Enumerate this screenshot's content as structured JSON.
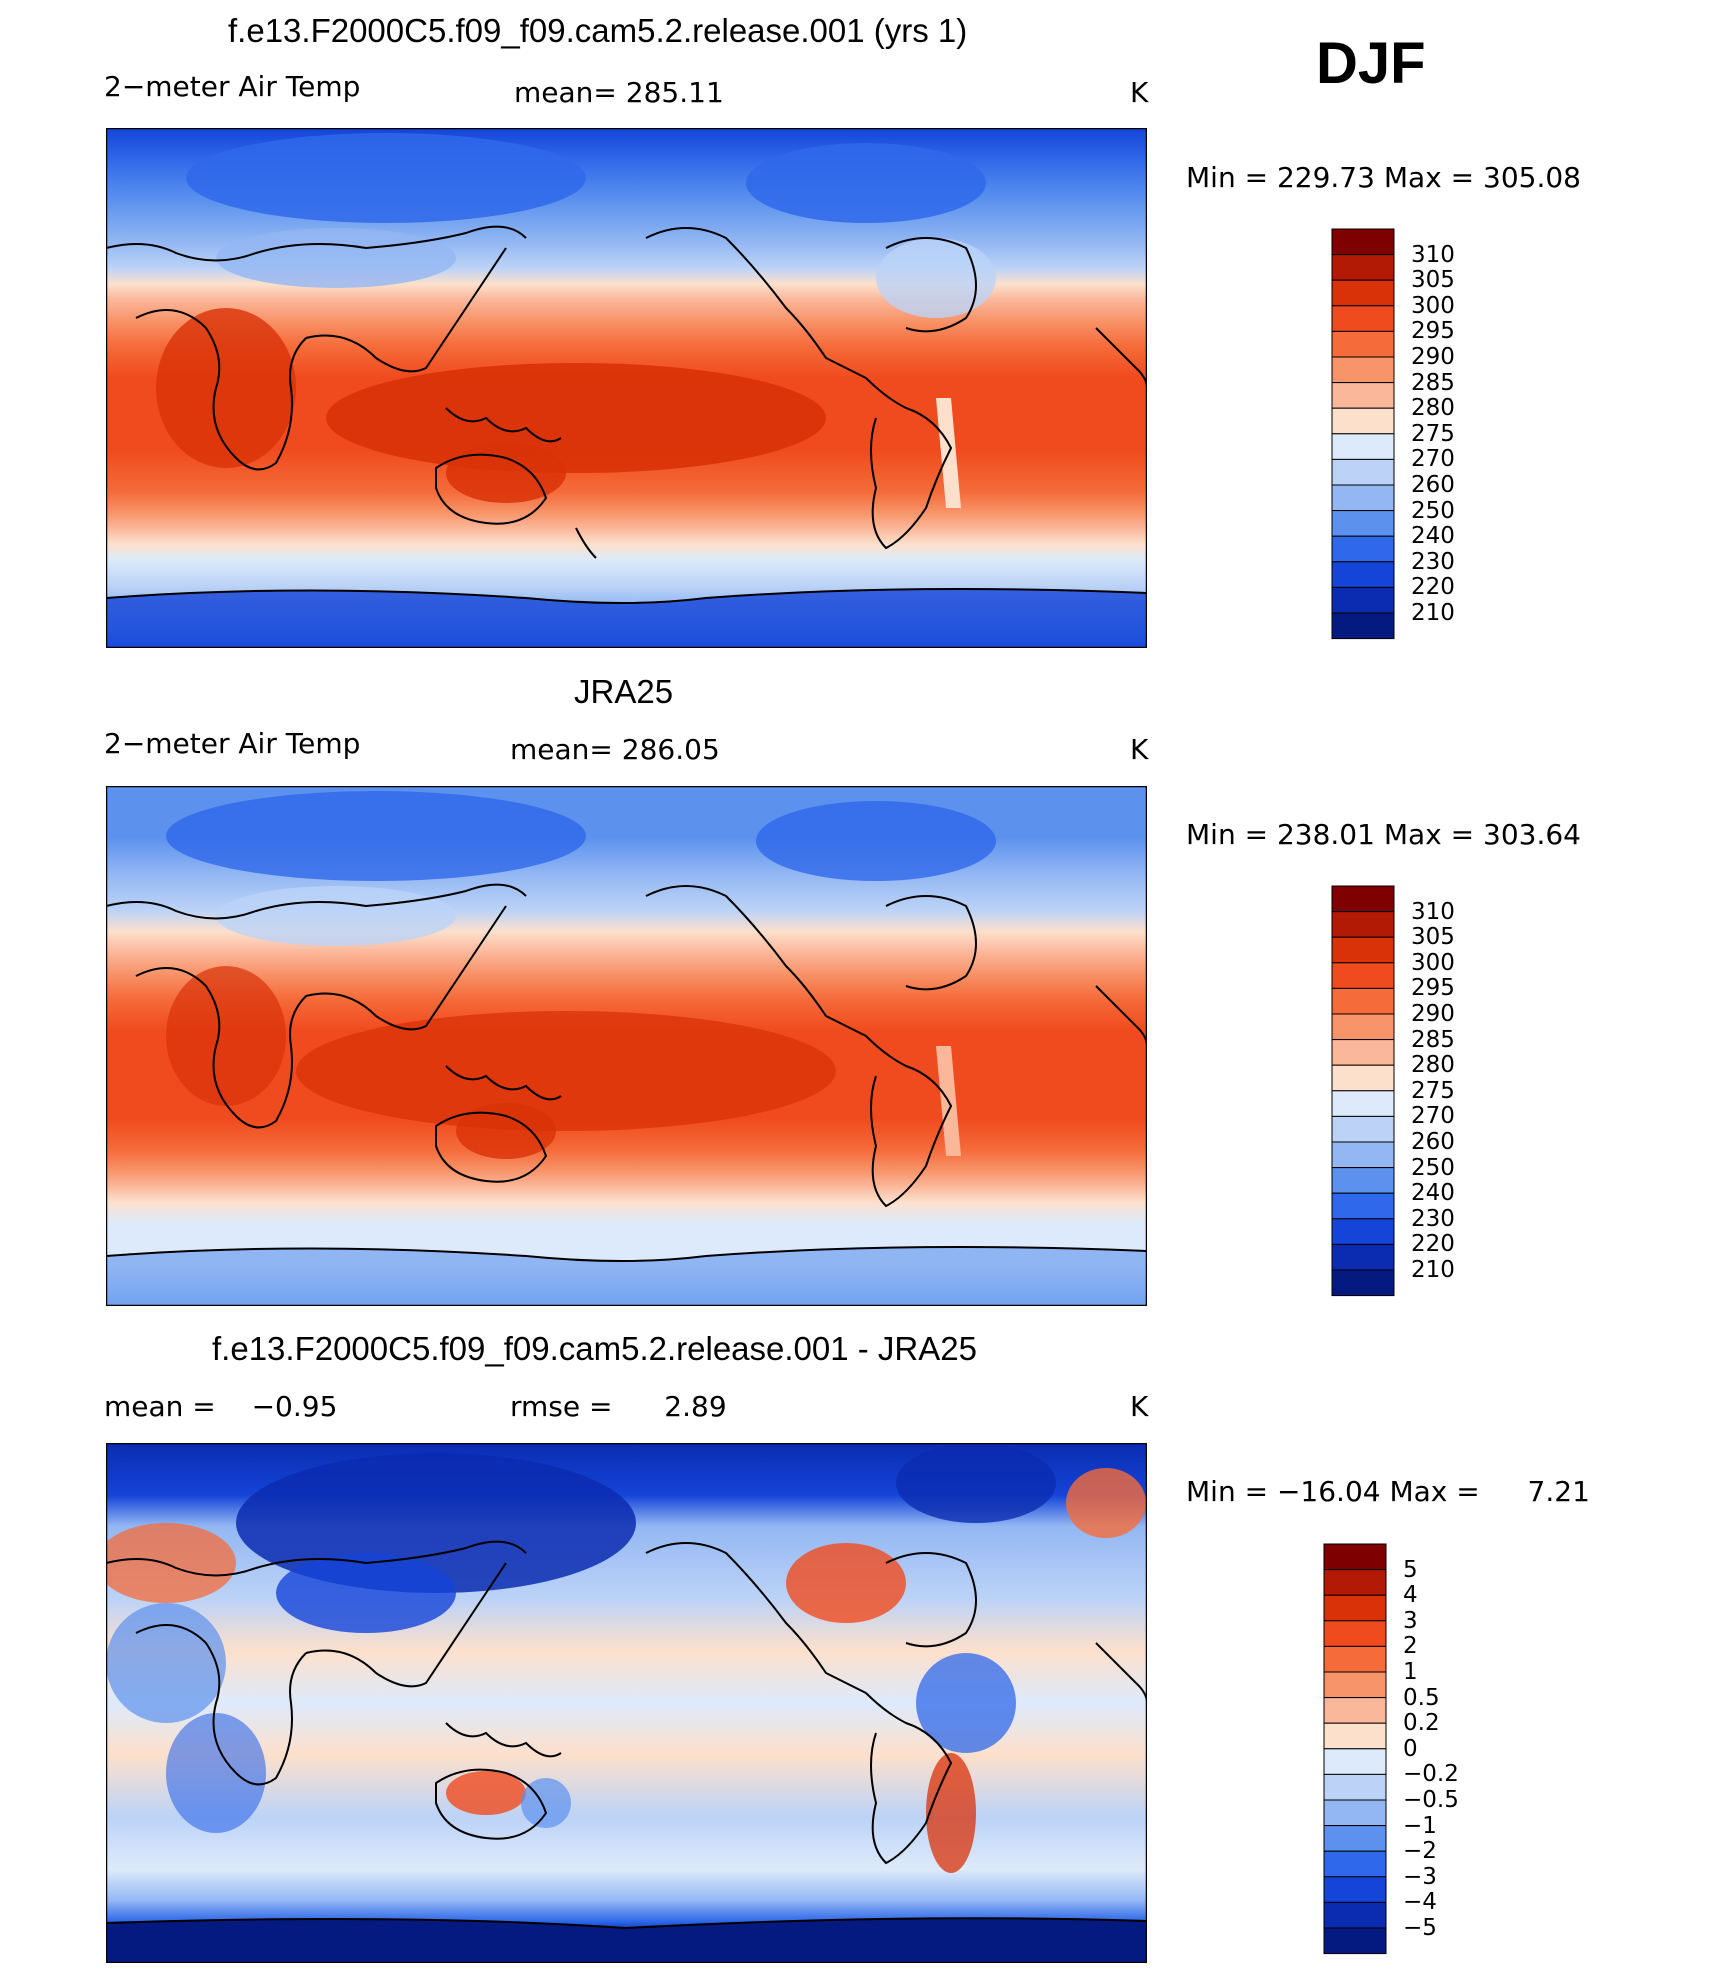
{
  "season": "DJF",
  "units": "K",
  "chart_data": [
    {
      "type": "heatmap",
      "title": "f.e13.F2000C5.f09_f09.cam5.2.release.001 (yrs 1)",
      "variable": "2-meter Air Temp",
      "stats_left": "2−meter Air Temp",
      "stats_mid_label": "mean=",
      "stats_mid_value": "285.11",
      "units": "K",
      "min_label": "Min =",
      "min_value": "229.73",
      "max_label": "Max =",
      "max_value": "305.08",
      "colorbar": {
        "levels": [
          "310",
          "305",
          "300",
          "295",
          "290",
          "285",
          "280",
          "275",
          "270",
          "260",
          "250",
          "240",
          "230",
          "220",
          "210"
        ],
        "colors": [
          "#7f0000",
          "#b31a06",
          "#d93208",
          "#f04b1e",
          "#f56b3a",
          "#f8946a",
          "#fbb79a",
          "#fde0cc",
          "#ddeafb",
          "#bcd3f7",
          "#93b7f3",
          "#5c92ee",
          "#2f68ea",
          "#1444d8",
          "#0b2cb0",
          "#041a80"
        ]
      }
    },
    {
      "type": "heatmap",
      "title": "JRA25",
      "variable": "2-meter Air Temp",
      "stats_left": "2−meter Air Temp",
      "stats_mid_label": "mean=",
      "stats_mid_value": "286.05",
      "units": "K",
      "min_label": "Min =",
      "min_value": "238.01",
      "max_label": "Max =",
      "max_value": "303.64",
      "colorbar": {
        "levels": [
          "310",
          "305",
          "300",
          "295",
          "290",
          "285",
          "280",
          "275",
          "270",
          "260",
          "250",
          "240",
          "230",
          "220",
          "210"
        ],
        "colors": [
          "#7f0000",
          "#b31a06",
          "#d93208",
          "#f04b1e",
          "#f56b3a",
          "#f8946a",
          "#fbb79a",
          "#fde0cc",
          "#ddeafb",
          "#bcd3f7",
          "#93b7f3",
          "#5c92ee",
          "#2f68ea",
          "#1444d8",
          "#0b2cb0",
          "#041a80"
        ]
      }
    },
    {
      "type": "heatmap",
      "title": "f.e13.F2000C5.f09_f09.cam5.2.release.001 - JRA25",
      "stats_left_label": "mean =",
      "stats_left_value": "−0.95",
      "stats_mid_label": "rmse =",
      "stats_mid_value": "2.89",
      "units": "K",
      "min_label": "Min =",
      "min_value": "−16.04",
      "max_label": "Max =",
      "max_value": "7.21",
      "colorbar": {
        "levels": [
          "5",
          "4",
          "3",
          "2",
          "1",
          "0.5",
          "0.2",
          "0",
          "−0.2",
          "−0.5",
          "−1",
          "−2",
          "−3",
          "−4",
          "−5"
        ],
        "colors": [
          "#7f0000",
          "#b31a06",
          "#d93208",
          "#f04b1e",
          "#f56b3a",
          "#f8946a",
          "#fbb79a",
          "#fde0cc",
          "#ddeafb",
          "#bcd3f7",
          "#93b7f3",
          "#5c92ee",
          "#2f68ea",
          "#1444d8",
          "#0b2cb0",
          "#041a80"
        ]
      }
    }
  ]
}
